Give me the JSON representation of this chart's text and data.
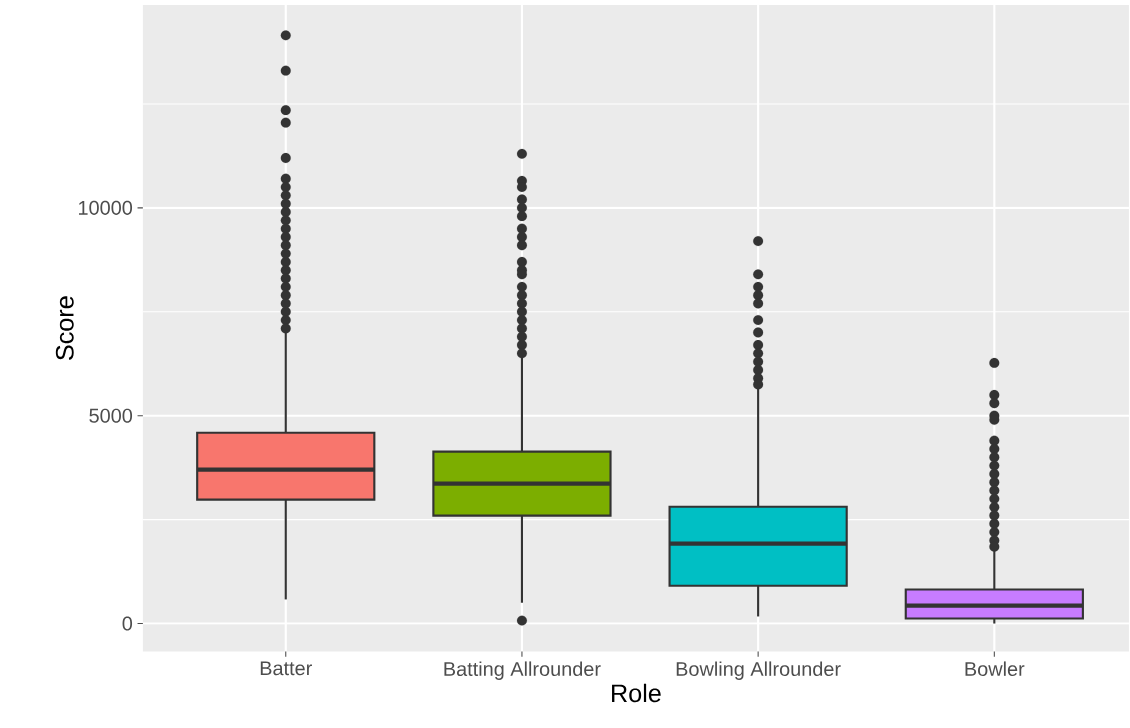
{
  "chart_data": {
    "type": "box",
    "xlabel": "Role",
    "ylabel": "Score",
    "categories": [
      "Batter",
      "Batting Allrounder",
      "Bowling Allrounder",
      "Bowler"
    ],
    "colors": [
      "#f8766d",
      "#7cae00",
      "#00bfc4",
      "#c77cff"
    ],
    "boxes": [
      {
        "low": 580,
        "q1": 2980,
        "median": 3700,
        "q3": 4590,
        "high": 7000,
        "outliers": [
          14150,
          13300,
          12350,
          12050,
          11200,
          10700,
          10500,
          10300,
          10100,
          9900,
          9700,
          9500,
          9300,
          9100,
          8900,
          8700,
          8500,
          8300,
          8100,
          7900,
          7700,
          7500,
          7300,
          7100
        ]
      },
      {
        "low": 500,
        "q1": 2595,
        "median": 3365,
        "q3": 4135,
        "high": 6450,
        "outliers": [
          11300,
          10650,
          10500,
          10200,
          10000,
          9800,
          9500,
          9300,
          9100,
          8700,
          8500,
          8400,
          8100,
          7900,
          7700,
          7500,
          7300,
          7100,
          6900,
          6700,
          6500,
          70
        ]
      },
      {
        "low": 170,
        "q1": 910,
        "median": 1920,
        "q3": 2810,
        "high": 5650,
        "outliers": [
          9200,
          8400,
          8100,
          7900,
          7700,
          7300,
          7000,
          6700,
          6500,
          6300,
          6100,
          5900,
          5750
        ]
      },
      {
        "low": 0,
        "q1": 120,
        "median": 430,
        "q3": 820,
        "high": 1750,
        "outliers": [
          6270,
          5500,
          5300,
          5000,
          4900,
          4400,
          4200,
          4000,
          3800,
          3600,
          3400,
          3200,
          3000,
          2800,
          2600,
          2400,
          2200,
          2000,
          1850
        ]
      }
    ],
    "ylim": [
      -670,
      14880
    ],
    "yticks": [
      0,
      {
        "value": 2500,
        "label": null
      },
      5000,
      {
        "value": 7500,
        "label": null
      },
      10000,
      {
        "value": 12500,
        "label": null
      }
    ],
    "grid": true,
    "marker": "circle"
  }
}
